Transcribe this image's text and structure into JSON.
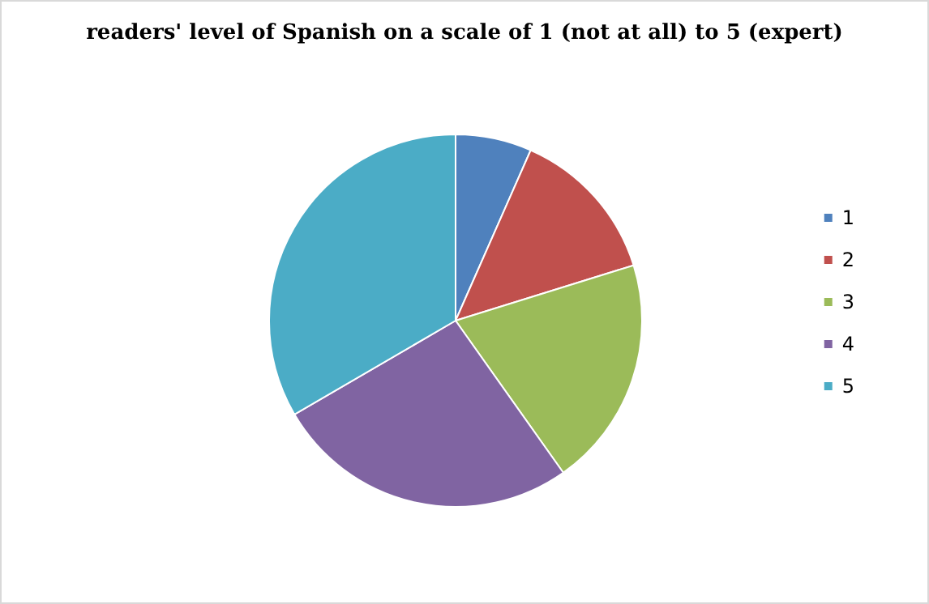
{
  "chart_data": {
    "type": "pie",
    "title": "readers' level of Spanish on a scale of 1 (not at all) to 5 (expert)",
    "categories": [
      "1",
      "2",
      "3",
      "4",
      "5"
    ],
    "values": [
      6.6,
      13.6,
      20,
      26.4,
      33.4
    ],
    "colors": [
      "#4f81bd",
      "#c0504d",
      "#9bbb59",
      "#8064a2",
      "#4bacc6"
    ],
    "legend": "right"
  }
}
